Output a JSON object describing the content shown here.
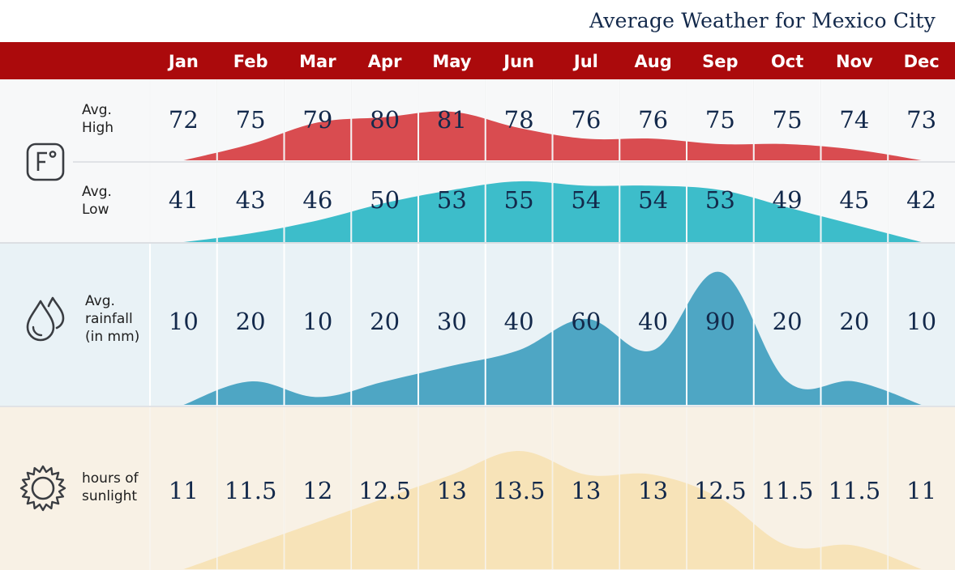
{
  "title": "Average Weather for Mexico City",
  "chart_data": {
    "type": "area",
    "title": "Average Weather for Mexico City",
    "categories": [
      "Jan",
      "Feb",
      "Mar",
      "Apr",
      "May",
      "Jun",
      "Jul",
      "Aug",
      "Sep",
      "Oct",
      "Nov",
      "Dec"
    ],
    "series": [
      {
        "key": "high",
        "name": "Avg. High",
        "label_lines": [
          "Avg.",
          "High"
        ],
        "unit": "°F",
        "color": "#d94c50",
        "values": [
          72,
          75,
          79,
          80,
          81,
          78,
          76,
          76,
          75,
          75,
          74,
          73
        ],
        "display": [
          "72",
          "75",
          "79",
          "80",
          "81",
          "78",
          "76",
          "76",
          "75",
          "75",
          "74",
          "73"
        ]
      },
      {
        "key": "low",
        "name": "Avg. Low",
        "label_lines": [
          "Avg.",
          "Low"
        ],
        "unit": "°F",
        "color": "#3dbdca",
        "values": [
          41,
          43,
          46,
          50,
          53,
          55,
          54,
          54,
          53,
          49,
          45,
          42
        ],
        "display": [
          "41",
          "43",
          "46",
          "50",
          "53",
          "55",
          "54",
          "54",
          "53",
          "49",
          "45",
          "42"
        ]
      },
      {
        "key": "rain",
        "name": "Avg. rainfall (in mm)",
        "label_lines": [
          "Avg.",
          "rainfall",
          "(in mm)"
        ],
        "unit": "mm",
        "color": "#4ea6c4",
        "values": [
          10,
          20,
          10,
          20,
          30,
          40,
          60,
          40,
          90,
          20,
          20,
          10
        ],
        "display": [
          "10",
          "20",
          "10",
          "20",
          "30",
          "40",
          "60",
          "40",
          "90",
          "20",
          "20",
          "10"
        ]
      },
      {
        "key": "sun",
        "name": "hours of sunlight",
        "label_lines": [
          "hours of",
          "sunlight"
        ],
        "unit": "hours",
        "color": "#f7e3b8",
        "values": [
          11,
          11.5,
          12,
          12.5,
          13,
          13.5,
          13,
          13,
          12.5,
          11.5,
          11.5,
          11
        ],
        "display": [
          "11",
          "11.5",
          "12",
          "12.5",
          "13",
          "13.5",
          "13",
          "13",
          "12.5",
          "11.5",
          "11.5",
          "11"
        ]
      }
    ]
  },
  "icons": {
    "temperature": "fahrenheit-icon",
    "rainfall": "raindrops-icon",
    "sunlight": "sun-icon"
  },
  "colors": {
    "header": "#ab0a0c",
    "title_text": "#13294b",
    "value_text": "#13294b"
  }
}
